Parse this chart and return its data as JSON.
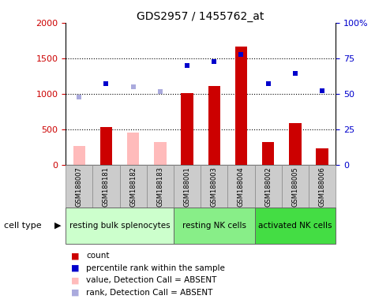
{
  "title": "GDS2957 / 1455762_at",
  "samples": [
    "GSM188007",
    "GSM188181",
    "GSM188182",
    "GSM188183",
    "GSM188001",
    "GSM188003",
    "GSM188004",
    "GSM188002",
    "GSM188005",
    "GSM188006"
  ],
  "groups": [
    {
      "label": "resting bulk splenocytes",
      "start": 0,
      "end": 4
    },
    {
      "label": "resting NK cells",
      "start": 4,
      "end": 7
    },
    {
      "label": "activated NK cells",
      "start": 7,
      "end": 10
    }
  ],
  "group_colors": [
    "#ccffcc",
    "#88ee88",
    "#44dd44"
  ],
  "count_values": [
    null,
    540,
    null,
    null,
    1010,
    1110,
    1660,
    330,
    590,
    240
  ],
  "count_absent": [
    270,
    null,
    460,
    330,
    null,
    null,
    null,
    null,
    null,
    null
  ],
  "rank_values": [
    null,
    1145,
    null,
    null,
    1400,
    1460,
    1550,
    1140,
    1290,
    1050
  ],
  "rank_absent": [
    960,
    null,
    1100,
    1030,
    null,
    null,
    null,
    null,
    null,
    null
  ],
  "ylim": [
    0,
    2000
  ],
  "y2lim": [
    0,
    100
  ],
  "yticks": [
    0,
    500,
    1000,
    1500,
    2000
  ],
  "y2ticks": [
    0,
    25,
    50,
    75,
    100
  ],
  "count_color": "#cc0000",
  "count_absent_color": "#ffbbbb",
  "rank_color": "#0000cc",
  "rank_absent_color": "#aaaadd",
  "sample_box_color": "#cccccc",
  "ylabel_color": "#cc0000",
  "y2label_color": "#0000cc"
}
